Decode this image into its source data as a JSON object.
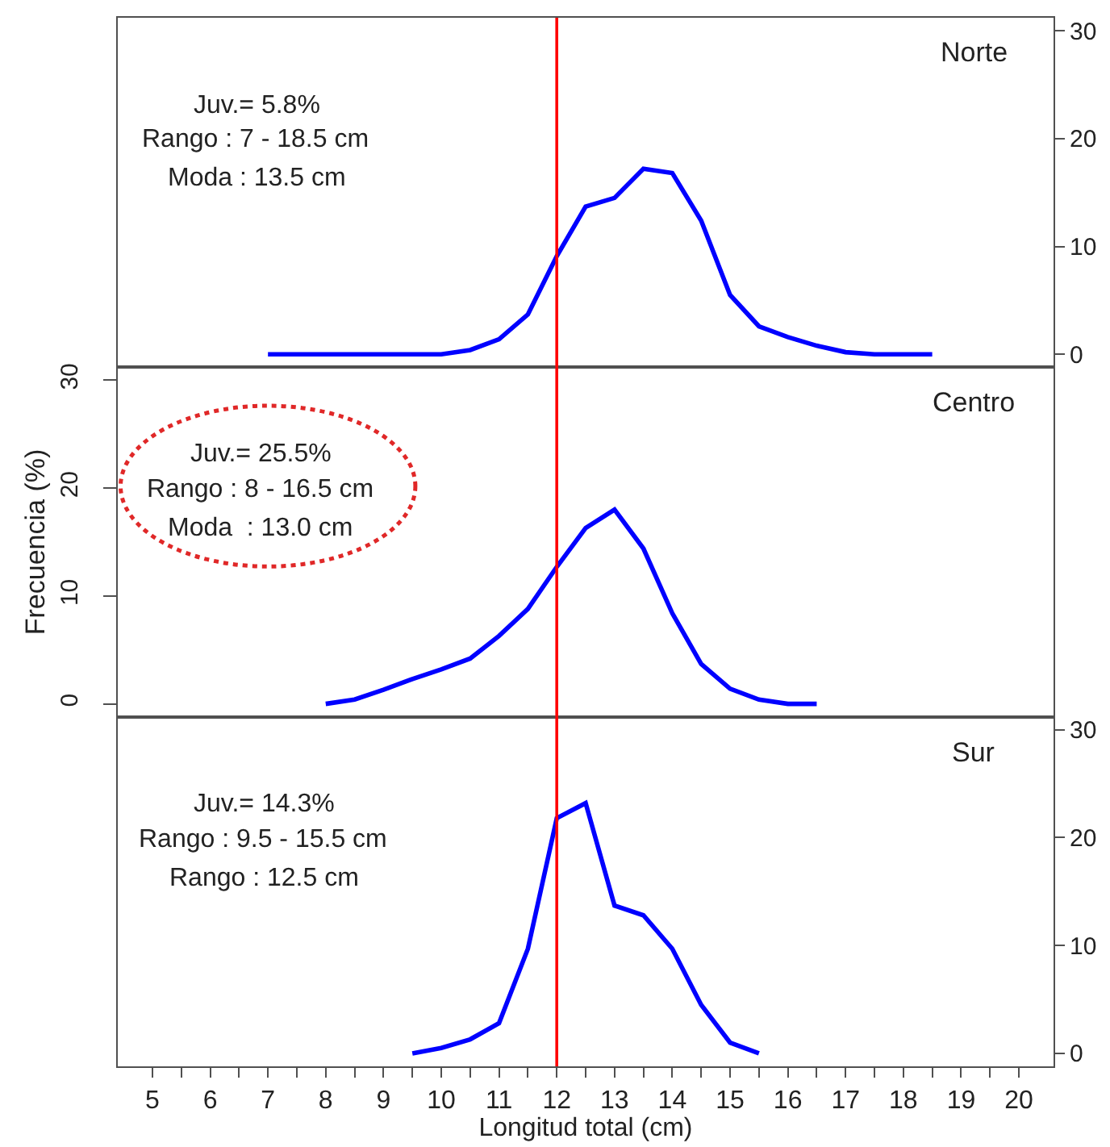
{
  "chart_data": [
    {
      "type": "line",
      "title": "Norte",
      "annotations": [
        "Juv.= 5.8%",
        "Rango : 7 - 18.5 cm",
        "Moda : 13.5 cm"
      ],
      "x": [
        7,
        7.5,
        8,
        8.5,
        9,
        9.5,
        10,
        10.5,
        11,
        11.5,
        12,
        12.5,
        13,
        13.5,
        14,
        14.5,
        15,
        15.5,
        16,
        16.5,
        17,
        17.5,
        18,
        18.5
      ],
      "series": [
        {
          "color": "#0000ff",
          "values": [
            0,
            0,
            0,
            0,
            0,
            0,
            0,
            0.4,
            1.4,
            3.7,
            9.1,
            13.7,
            14.5,
            17.2,
            16.8,
            12.4,
            5.5,
            2.6,
            1.6,
            0.8,
            0.2,
            0,
            0,
            0
          ]
        }
      ],
      "xlim": [
        4.4,
        20.6
      ],
      "ylim": [
        -1.2,
        31.2
      ],
      "yticks": [
        0,
        10,
        20,
        30
      ],
      "ref_lines": [
        {
          "axis": "x",
          "value": 12,
          "color": "#ff0000"
        }
      ],
      "tick_labels": "y"
    },
    {
      "type": "line",
      "title": "Centro",
      "ylabel": "Frecuencia (%)",
      "annotations": [
        "Juv.= 25.5%",
        "Rango : 8 - 16.5 cm",
        "Moda  : 13.0 cm"
      ],
      "x": [
        8,
        8.5,
        9,
        9.5,
        10,
        10.5,
        11,
        11.5,
        12,
        12.5,
        13,
        13.5,
        14,
        14.5,
        15,
        15.5,
        16,
        16.5
      ],
      "series": [
        {
          "color": "#0000ff",
          "values": [
            0,
            0.4,
            1.3,
            2.3,
            3.2,
            4.2,
            6.3,
            8.8,
            12.7,
            16.3,
            18.0,
            14.4,
            8.4,
            3.7,
            1.4,
            0.4,
            0,
            0
          ]
        }
      ],
      "xlim": [
        4.4,
        20.6
      ],
      "ylim": [
        -1.2,
        31.2
      ],
      "yticks": [
        0,
        10,
        20,
        30
      ],
      "ref_lines": [
        {
          "axis": "x",
          "value": 12,
          "color": "#ff0000"
        }
      ],
      "tick_labels": "y"
    },
    {
      "type": "line",
      "title": "Sur",
      "xlabel": "Longitud total (cm)",
      "annotations": [
        "Juv.= 14.3%",
        "Rango : 9.5 - 15.5 cm",
        "Rango : 12.5 cm"
      ],
      "x": [
        9.5,
        10,
        10.5,
        11,
        11.5,
        12,
        12.5,
        13,
        13.5,
        14,
        14.5,
        15,
        15.5
      ],
      "series": [
        {
          "color": "#0000ff",
          "values": [
            0,
            0.5,
            1.3,
            2.8,
            9.7,
            21.8,
            23.2,
            13.7,
            12.8,
            9.7,
            4.5,
            1.0,
            0
          ]
        }
      ],
      "xlim": [
        4.4,
        20.6
      ],
      "xticks": [
        5,
        {
          "value": 5.5,
          "label": null
        },
        6,
        {
          "value": 6.5,
          "label": null
        },
        7,
        {
          "value": 7.5,
          "label": null
        },
        8,
        {
          "value": 8.5,
          "label": null
        },
        9,
        {
          "value": 9.5,
          "label": null
        },
        10,
        {
          "value": 10.5,
          "label": null
        },
        11,
        {
          "value": 11.5,
          "label": null
        },
        12,
        {
          "value": 12.5,
          "label": null
        },
        13,
        {
          "value": 13.5,
          "label": null
        },
        14,
        {
          "value": 14.5,
          "label": null
        },
        15,
        {
          "value": 15.5,
          "label": null
        },
        16,
        {
          "value": 16.5,
          "label": null
        },
        17,
        {
          "value": 17.5,
          "label": null
        },
        18,
        {
          "value": 18.5,
          "label": null
        },
        19,
        {
          "value": 19.5,
          "label": null
        },
        20
      ],
      "ylim": [
        -1.2,
        31.2
      ],
      "yticks": [
        0,
        10,
        20,
        30
      ],
      "ref_lines": [
        {
          "axis": "x",
          "value": 12,
          "color": "#ff0000"
        }
      ]
    }
  ]
}
